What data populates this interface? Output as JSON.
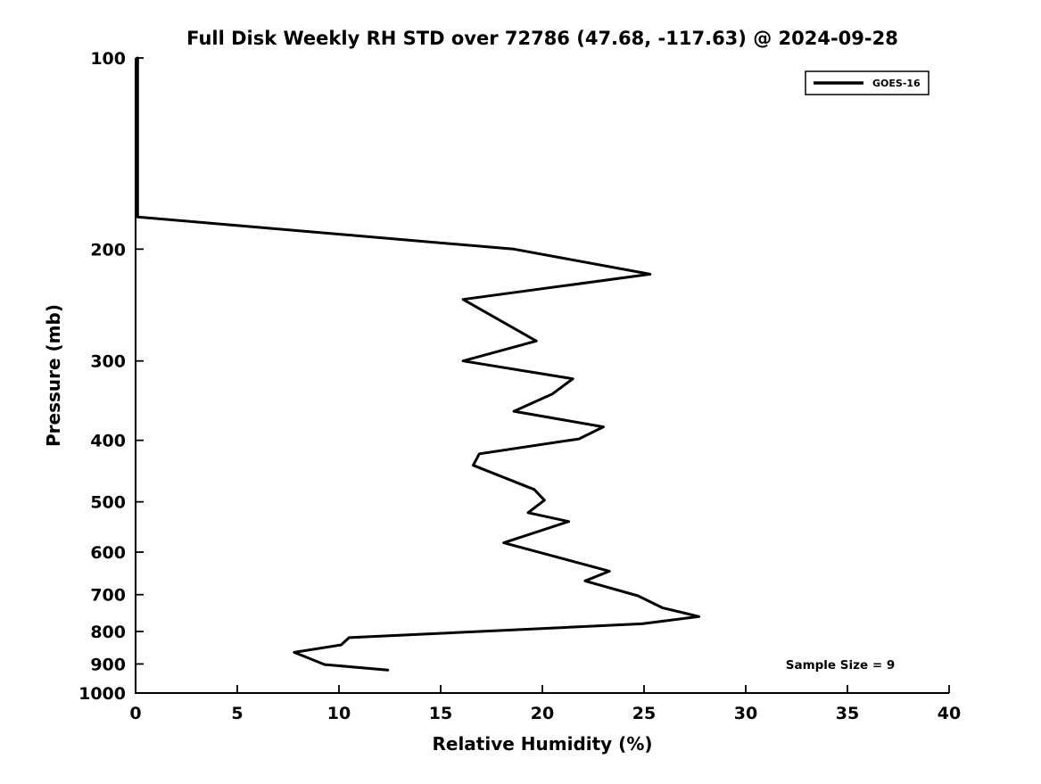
{
  "chart_data": {
    "type": "line",
    "title": "Full Disk Weekly RH STD over 72786 (47.68, -117.63) @ 2024-09-28",
    "xlabel": "Relative Humidity (%)",
    "ylabel": "Pressure (mb)",
    "xlim": [
      0,
      40
    ],
    "ylim": [
      100,
      1000
    ],
    "y_scale": "log",
    "y_inverted": true,
    "grid": false,
    "x_ticks": [
      0,
      5,
      10,
      15,
      20,
      25,
      30,
      35,
      40
    ],
    "y_ticks": [
      100,
      200,
      300,
      400,
      500,
      600,
      700,
      800,
      900,
      1000
    ],
    "legend_position": "top-right",
    "line_color": "#000000",
    "series": [
      {
        "name": "GOES-16",
        "color": "#000000",
        "points_format": "[relative_humidity_percent, pressure_mb]",
        "points": [
          [
            0.1,
            100
          ],
          [
            0.1,
            178
          ],
          [
            18.6,
            200
          ],
          [
            25.3,
            219
          ],
          [
            16.1,
            240
          ],
          [
            19.7,
            279
          ],
          [
            16.1,
            300
          ],
          [
            21.5,
            320
          ],
          [
            20.5,
            338
          ],
          [
            18.6,
            360
          ],
          [
            23.0,
            381
          ],
          [
            21.8,
            398
          ],
          [
            16.9,
            420
          ],
          [
            16.6,
            438
          ],
          [
            19.6,
            478
          ],
          [
            20.1,
            497
          ],
          [
            19.3,
            520
          ],
          [
            21.3,
            537
          ],
          [
            18.1,
            580
          ],
          [
            23.3,
            643
          ],
          [
            22.1,
            666
          ],
          [
            24.7,
            703
          ],
          [
            25.9,
            734
          ],
          [
            27.7,
            758
          ],
          [
            24.9,
            778
          ],
          [
            10.5,
            818
          ],
          [
            10.1,
            840
          ],
          [
            7.8,
            863
          ],
          [
            9.3,
            902
          ],
          [
            12.4,
            920
          ]
        ]
      }
    ],
    "annotations": [
      {
        "text": "Sample Size = 9"
      }
    ]
  }
}
